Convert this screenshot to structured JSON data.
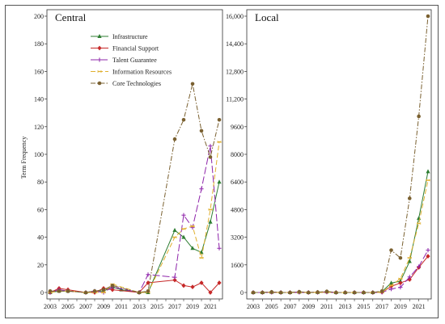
{
  "chart_data": [
    {
      "type": "line",
      "title": "Central",
      "ylabel": "Term Frequency",
      "xlabel": "",
      "ylim": [
        0,
        200
      ],
      "yticks": [
        "0",
        "20",
        "40",
        "60",
        "80",
        "100",
        "120",
        "140",
        "160",
        "180",
        "200"
      ],
      "xticks": [
        "2003",
        "2005",
        "2007",
        "2009",
        "2011",
        "2013",
        "2015",
        "2017",
        "2019",
        "2021"
      ],
      "x": [
        2003,
        2004,
        2005,
        2006,
        2007,
        2008,
        2009,
        2010,
        2011,
        2012,
        2013,
        2014,
        2015,
        2016,
        2017,
        2018,
        2019,
        2020,
        2021,
        2022
      ],
      "legend_position": "top-center",
      "series": [
        {
          "name": "Infrastructure",
          "color": "#2e7d32",
          "dash": "solid",
          "marker": "triangle",
          "values": [
            0,
            1,
            1,
            null,
            0,
            1,
            1,
            4,
            2,
            null,
            0,
            0,
            null,
            null,
            45,
            40,
            32,
            29,
            51,
            80
          ]
        },
        {
          "name": "Financial Support",
          "color": "#c62828",
          "dash": "solid",
          "marker": "diamond",
          "values": [
            0,
            3,
            2,
            null,
            0,
            0,
            3,
            2,
            null,
            null,
            0,
            7,
            null,
            null,
            9,
            5,
            4,
            7,
            0,
            7
          ]
        },
        {
          "name": "Talent Guarantee",
          "color": "#8e24aa",
          "dash": "longdash",
          "marker": "plus",
          "values": [
            0,
            2,
            1,
            null,
            0,
            1,
            0,
            4,
            null,
            null,
            0,
            13,
            null,
            null,
            11,
            56,
            47,
            75,
            106,
            32
          ]
        },
        {
          "name": "Information Resources",
          "color": "#e0b030",
          "dash": "dash",
          "marker": "x",
          "values": [
            0,
            1,
            1,
            null,
            0,
            0,
            0,
            6,
            null,
            null,
            0,
            0,
            null,
            null,
            40,
            46,
            48,
            25,
            60,
            109
          ]
        },
        {
          "name": "Core Technologies",
          "color": "#7a6030",
          "dash": "dashdot",
          "marker": "circle",
          "values": [
            1,
            1,
            1,
            null,
            0,
            1,
            2,
            5,
            null,
            null,
            0,
            1,
            null,
            null,
            111,
            125,
            151,
            117,
            98,
            125
          ]
        }
      ]
    },
    {
      "type": "line",
      "title": "Local",
      "ylabel": "",
      "xlabel": "",
      "ylim": [
        0,
        16000
      ],
      "yticks": [
        "0",
        "1600",
        "3200",
        "4800",
        "6400",
        "8000",
        "9600",
        "11,200",
        "12,800",
        "14,400",
        "16,000"
      ],
      "xticks": [
        "2003",
        "2005",
        "2007",
        "2009",
        "2011",
        "2013",
        "2015",
        "2017",
        "2019",
        "2021"
      ],
      "x": [
        2003,
        2004,
        2005,
        2006,
        2007,
        2008,
        2009,
        2010,
        2011,
        2012,
        2013,
        2014,
        2015,
        2016,
        2017,
        2018,
        2019,
        2020,
        2021,
        2022
      ],
      "series": [
        {
          "name": "Infrastructure",
          "color": "#2e7d32",
          "dash": "solid",
          "marker": "triangle",
          "values": [
            0,
            0,
            20,
            0,
            0,
            30,
            0,
            10,
            40,
            0,
            0,
            0,
            0,
            0,
            50,
            550,
            650,
            1800,
            4300,
            7000
          ]
        },
        {
          "name": "Financial Support",
          "color": "#c62828",
          "dash": "solid",
          "marker": "diamond",
          "values": [
            0,
            0,
            10,
            0,
            0,
            20,
            0,
            10,
            30,
            0,
            0,
            0,
            0,
            0,
            20,
            350,
            550,
            750,
            1450,
            2100
          ]
        },
        {
          "name": "Talent Guarantee",
          "color": "#8e24aa",
          "dash": "longdash",
          "marker": "plus",
          "values": [
            0,
            0,
            10,
            0,
            0,
            10,
            0,
            0,
            20,
            0,
            0,
            0,
            0,
            0,
            10,
            200,
            300,
            900,
            1500,
            2450
          ]
        },
        {
          "name": "Information Resources",
          "color": "#e0b030",
          "dash": "dash",
          "marker": "x",
          "values": [
            0,
            0,
            10,
            0,
            0,
            10,
            0,
            0,
            20,
            0,
            0,
            0,
            0,
            0,
            20,
            400,
            800,
            2000,
            4000,
            6500
          ]
        },
        {
          "name": "Core Technologies",
          "color": "#7a6030",
          "dash": "dashdot",
          "marker": "circle",
          "values": [
            0,
            0,
            30,
            0,
            0,
            40,
            0,
            20,
            60,
            0,
            0,
            0,
            0,
            0,
            80,
            2450,
            2000,
            5450,
            10200,
            16000
          ]
        }
      ]
    }
  ]
}
